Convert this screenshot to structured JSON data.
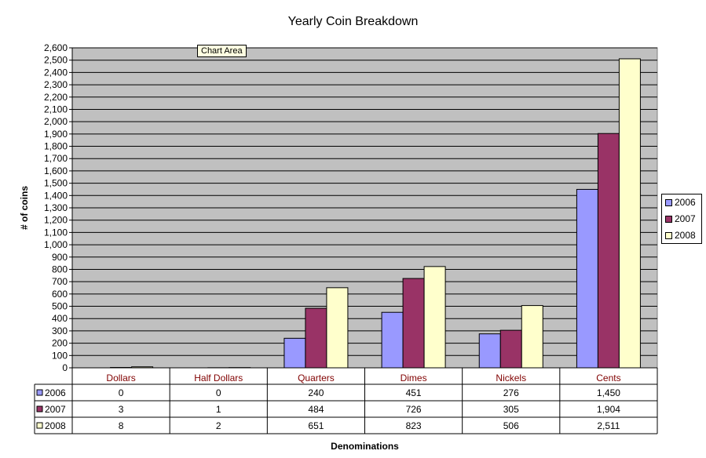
{
  "chart_data": {
    "type": "bar",
    "title": "Yearly Coin Breakdown",
    "xlabel": "Denominations",
    "ylabel": "# of coins",
    "categories": [
      "Dollars",
      "Half Dollars",
      "Quarters",
      "Dimes",
      "Nickels",
      "Cents"
    ],
    "series": [
      {
        "name": "2006",
        "values": [
          0,
          0,
          240,
          451,
          276,
          1450
        ],
        "labels": [
          "0",
          "0",
          "240",
          "451",
          "276",
          "1,450"
        ],
        "color": "#9999ff"
      },
      {
        "name": "2007",
        "values": [
          3,
          1,
          484,
          726,
          305,
          1904
        ],
        "labels": [
          "3",
          "1",
          "484",
          "726",
          "305",
          "1,904"
        ],
        "color": "#993366"
      },
      {
        "name": "2008",
        "values": [
          8,
          2,
          651,
          823,
          506,
          2511
        ],
        "labels": [
          "8",
          "2",
          "651",
          "823",
          "506",
          "2,511"
        ],
        "color": "#ffffcc"
      }
    ],
    "ylim": [
      0,
      2600
    ],
    "ytick_step": 100,
    "yticks": [
      "0",
      "100",
      "200",
      "300",
      "400",
      "500",
      "600",
      "700",
      "800",
      "900",
      "1,000",
      "1,100",
      "1,200",
      "1,300",
      "1,400",
      "1,500",
      "1,600",
      "1,700",
      "1,800",
      "1,900",
      "2,000",
      "2,100",
      "2,200",
      "2,300",
      "2,400",
      "2,500",
      "2,600"
    ],
    "grid": true,
    "plot_background": "#c0c0c0",
    "category_label_color": "#800000",
    "legend": "right",
    "data_table": true
  },
  "tooltip": "Chart Area"
}
